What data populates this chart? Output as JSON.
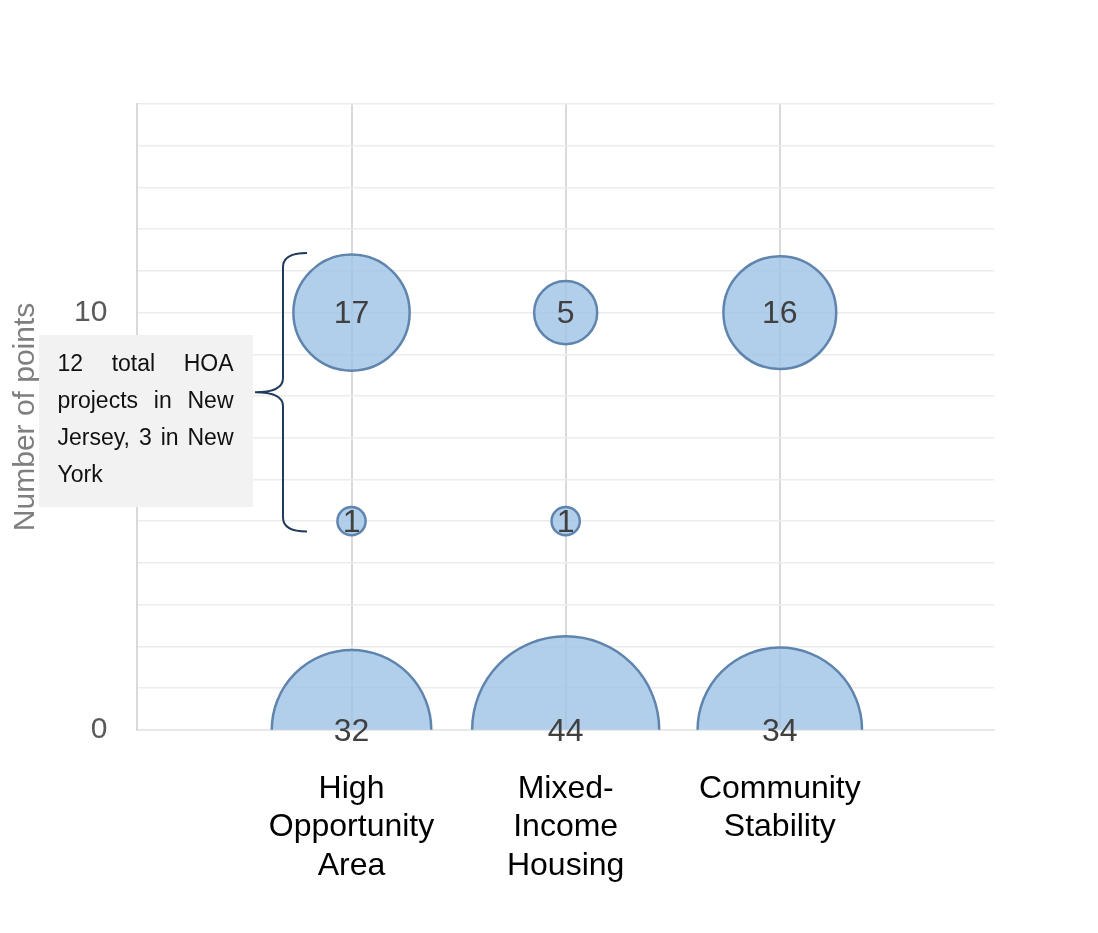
{
  "chart_data": {
    "type": "bubble",
    "ylabel": "Number of points",
    "categories": [
      "High Opportunity Area",
      "Mixed-Income Housing",
      "Community Stability"
    ],
    "series": [
      {
        "color": "#9dc3e6",
        "values": [
          10,
          10,
          10
        ],
        "sizes": [
          17,
          5,
          16
        ],
        "value_labels": [
          "17",
          "5",
          "16"
        ]
      },
      {
        "color": "#9dc3e6",
        "values": [
          5,
          5,
          null
        ],
        "sizes": [
          1,
          1,
          null
        ],
        "value_labels": [
          "1",
          "1",
          null
        ]
      },
      {
        "color": "#9dc3e6",
        "values": [
          0,
          0,
          0
        ],
        "sizes": [
          32,
          44,
          34
        ],
        "value_labels": [
          "32",
          "44",
          "34"
        ]
      }
    ],
    "ylim": [
      0,
      15
    ],
    "yticks": [
      0,
      {
        "value": 1,
        "label": null
      },
      {
        "value": 2,
        "label": null
      },
      {
        "value": 3,
        "label": null
      },
      {
        "value": 4,
        "label": null
      },
      {
        "value": 5,
        "label": null
      },
      {
        "value": 6,
        "label": null
      },
      {
        "value": 7,
        "label": null
      },
      {
        "value": 8,
        "label": null
      },
      {
        "value": 9,
        "label": null
      },
      10,
      {
        "value": 11,
        "label": null
      },
      {
        "value": 12,
        "label": null
      },
      {
        "value": 13,
        "label": null
      },
      {
        "value": 14,
        "label": null
      },
      {
        "value": 15,
        "label": null
      }
    ],
    "grid": true,
    "annotations": [
      "12 total HOA projects in New Jersey, 3 in New York"
    ]
  }
}
